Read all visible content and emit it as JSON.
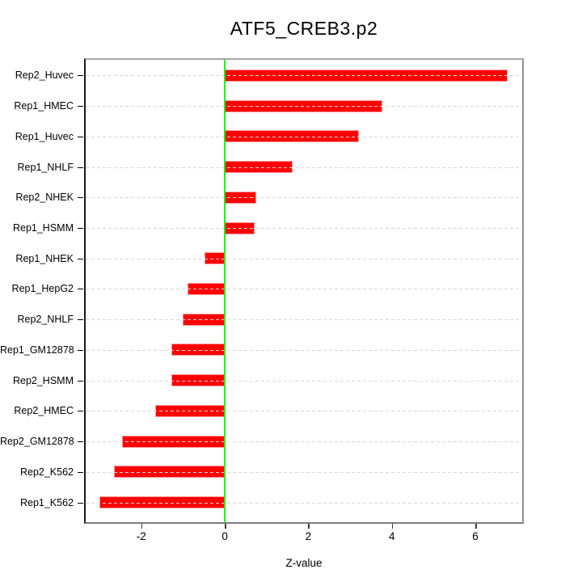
{
  "chart_data": {
    "type": "bar",
    "orientation": "horizontal",
    "title": "ATF5_CREB3.p2",
    "xlabel": "Z-value",
    "ylabel": "",
    "categories": [
      "Rep2_Huvec",
      "Rep1_HMEC",
      "Rep1_Huvec",
      "Rep1_NHLF",
      "Rep2_NHEK",
      "Rep1_HSMM",
      "Rep1_NHEK",
      "Rep1_HepG2",
      "Rep2_NHLF",
      "Rep1_GM12878",
      "Rep2_HSMM",
      "Rep2_HMEC",
      "Rep2_GM12878",
      "Rep2_K562",
      "Rep1_K562"
    ],
    "values": [
      6.77,
      3.77,
      3.22,
      1.62,
      0.75,
      0.71,
      -0.48,
      -0.89,
      -1.01,
      -1.27,
      -1.28,
      -1.67,
      -2.46,
      -2.66,
      -3.0
    ],
    "xlim": [
      -3.37,
      7.16
    ],
    "xticks": [
      -2,
      0,
      2,
      4,
      6
    ],
    "grid": "horizontal-dashed",
    "legend": "none",
    "colors": {
      "bar_fill": "#ff0000",
      "bar_border": "#ff9999",
      "zero_line": "#00ff00",
      "gridline": "#d6d6d6",
      "text": "#000000",
      "background": "#ffffff"
    }
  }
}
